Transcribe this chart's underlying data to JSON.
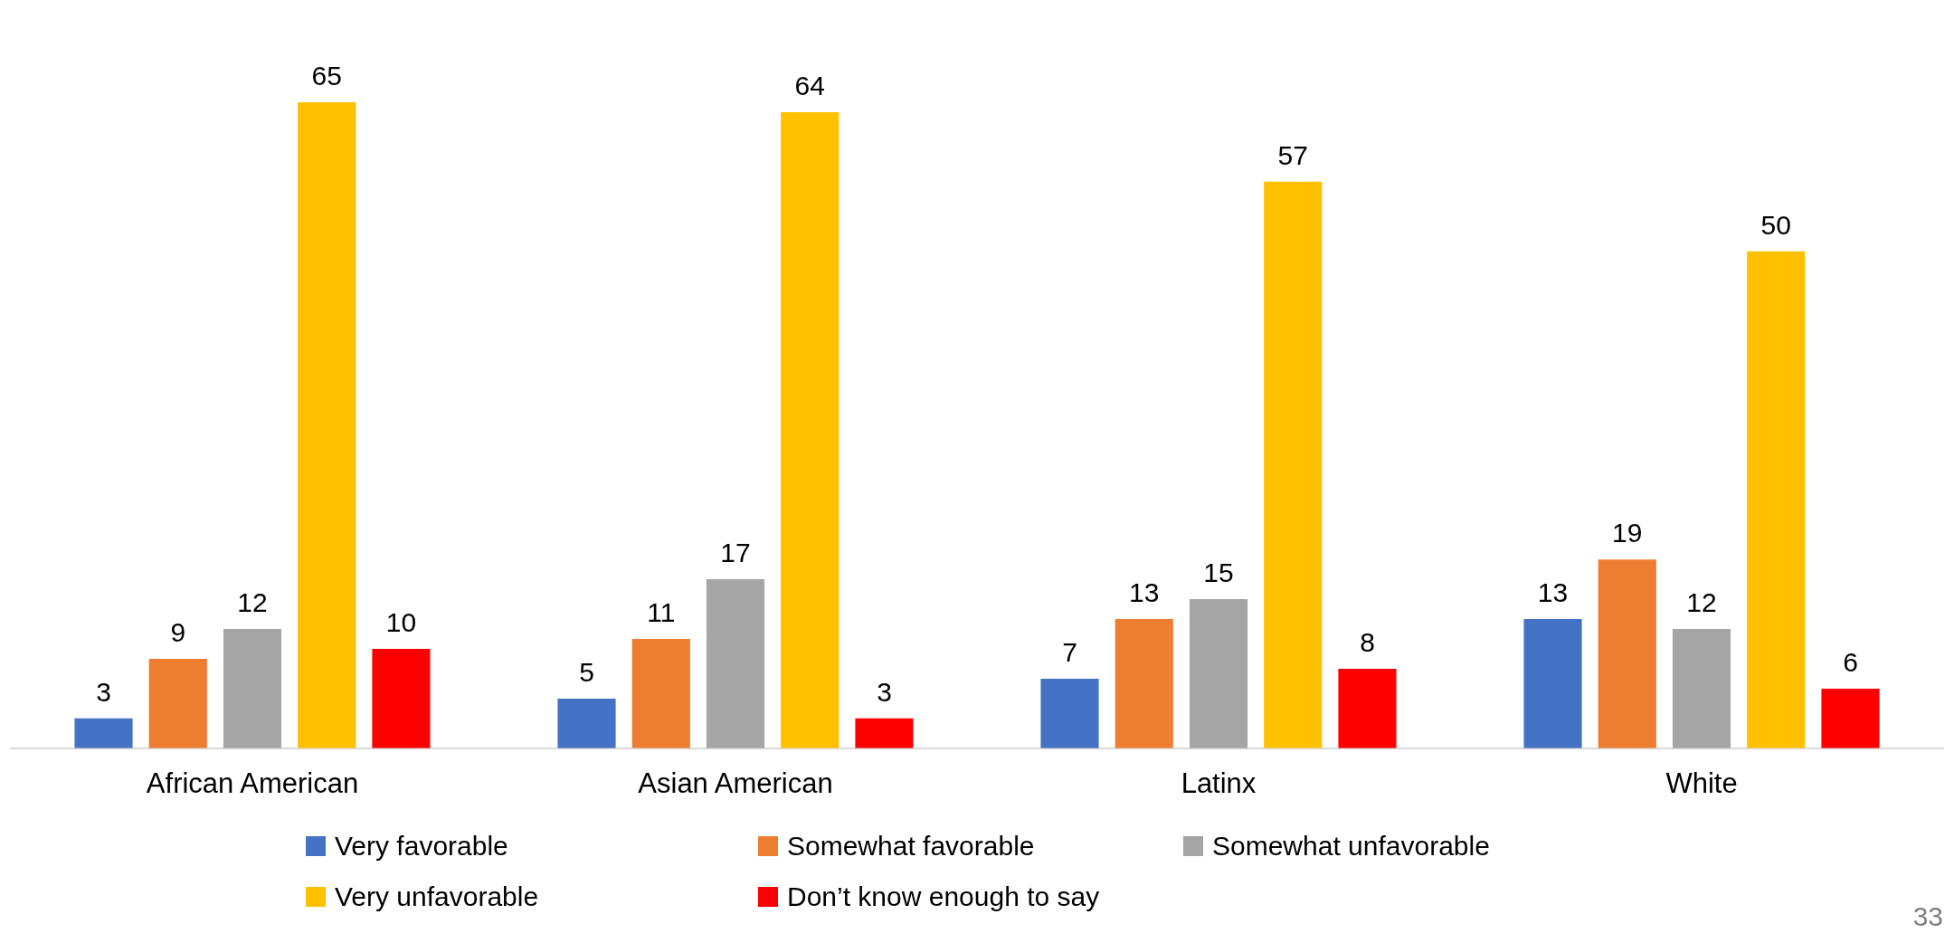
{
  "chart_data": {
    "type": "bar",
    "categories": [
      "African American",
      "Asian American",
      "Latinx",
      "White"
    ],
    "series": [
      {
        "name": "Very favorable",
        "color": "#4472c4",
        "values": [
          3,
          5,
          7,
          13
        ]
      },
      {
        "name": "Somewhat favorable",
        "color": "#ed7d31",
        "values": [
          9,
          11,
          13,
          19
        ]
      },
      {
        "name": "Somewhat unfavorable",
        "color": "#a5a5a5",
        "values": [
          12,
          17,
          15,
          12
        ]
      },
      {
        "name": "Very unfavorable",
        "color": "#ffc000",
        "values": [
          65,
          64,
          57,
          50
        ]
      },
      {
        "name": "Don’t know enough to say",
        "color": "#ff0000",
        "values": [
          10,
          3,
          8,
          6
        ]
      }
    ],
    "data_labels": true,
    "legend": "bottom",
    "grid": false,
    "annotations": [
      "33"
    ]
  }
}
